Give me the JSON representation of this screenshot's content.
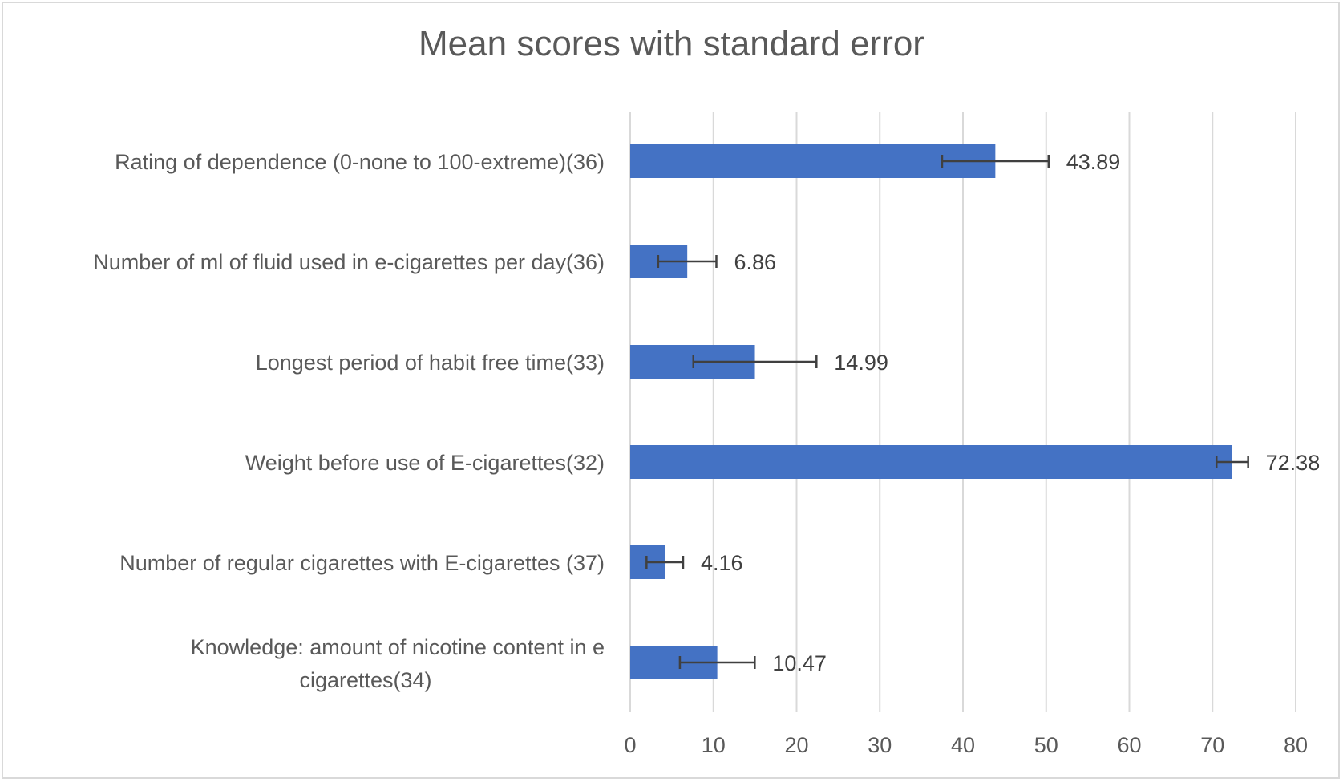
{
  "chart_data": {
    "type": "bar",
    "orientation": "horizontal",
    "title": "Mean scores with standard error",
    "xlabel": "",
    "ylabel": "",
    "xlim": [
      0,
      80
    ],
    "x_ticks": [
      0,
      10,
      20,
      30,
      40,
      50,
      60,
      70,
      80
    ],
    "grid": true,
    "legend": "none",
    "bar_color": "#4472c4",
    "error_bar_color": "#404040",
    "categories": [
      "Rating of dependence (0-none to 100-extreme)(36)",
      "Number of ml of fluid used in e-cigarettes per day(36)",
      "Longest period of habit free time(33)",
      "Weight before use of E-cigarettes(32)",
      "Number of regular cigarettes with E-cigarettes (37)",
      "Knowledge: amount of nicotine content in e cigarettes(34)"
    ],
    "category_lines": [
      [
        "Rating of dependence (0-none to 100-extreme)(36)"
      ],
      [
        "Number of ml of fluid used in e-cigarettes per day(36)"
      ],
      [
        "Longest period of habit free time(33)"
      ],
      [
        "Weight before use of E-cigarettes(32)"
      ],
      [
        "Number of regular cigarettes with E-cigarettes (37)"
      ],
      [
        "Knowledge: amount of nicotine content in e",
        "cigarettes(34)"
      ]
    ],
    "values": [
      43.89,
      6.86,
      14.99,
      72.38,
      4.16,
      10.47
    ],
    "value_labels": [
      "43.89",
      "6.86",
      "14.99",
      "72.38",
      "4.16",
      "10.47"
    ],
    "standard_error": [
      6.4,
      3.5,
      7.4,
      1.9,
      2.2,
      4.5
    ]
  }
}
